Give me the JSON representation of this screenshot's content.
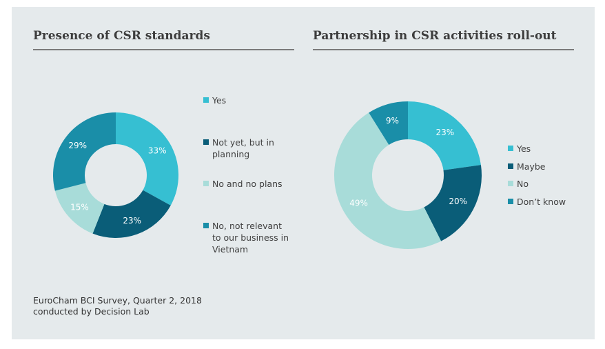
{
  "chart_data": [
    {
      "type": "pie",
      "variant": "donut",
      "title": "Presence of CSR standards",
      "categories": [
        "Yes",
        "Not yet, but in planning",
        "No and no plans",
        "No, not relevant to our business in Vietnam"
      ],
      "legend_lines": [
        [
          "Yes"
        ],
        [
          "Not yet, but in",
          "planning"
        ],
        [
          "No and no plans"
        ],
        [
          "No, not relevant",
          "to our business in",
          "Vietnam"
        ]
      ],
      "values": [
        33,
        23,
        15,
        29
      ],
      "labels": [
        "33%",
        "23%",
        "15%",
        "29%"
      ],
      "colors": [
        "#36bfd2",
        "#0a5d78",
        "#a8dcd9",
        "#1a8ea8"
      ],
      "legend_position": "right"
    },
    {
      "type": "pie",
      "variant": "donut",
      "title": "Partnership in CSR activities roll-out",
      "categories": [
        "Yes",
        "Maybe",
        "No",
        "Don’t know"
      ],
      "legend_lines": [
        [
          "Yes"
        ],
        [
          "Maybe"
        ],
        [
          "No"
        ],
        [
          "Don’t know"
        ]
      ],
      "values": [
        23,
        20,
        49,
        9
      ],
      "labels": [
        "23%",
        "20%",
        "49%",
        "9%"
      ],
      "colors": [
        "#36bfd2",
        "#0a5d78",
        "#a8dcd9",
        "#1a8ea8"
      ],
      "legend_position": "right"
    }
  ],
  "source": {
    "line1": "EuroCham BCI Survey, Quarter 2, 2018",
    "line2": "conducted by Decision Lab"
  }
}
